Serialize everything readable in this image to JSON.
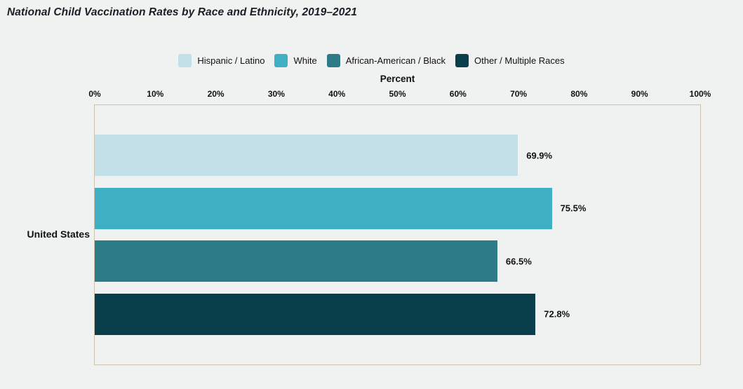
{
  "page": {
    "title": "National Child Vaccination Rates by Race and Ethnicity, 2019–2021",
    "background_color": "#f0f2f1",
    "plot_border_color": "#ccc2b0"
  },
  "chart": {
    "x_axis_title": "Percent",
    "category_label": "United States",
    "tick_labels": [
      "0%",
      "10%",
      "20%",
      "30%",
      "40%",
      "50%",
      "60%",
      "70%",
      "80%",
      "90%",
      "100%"
    ]
  },
  "chart_data": {
    "type": "bar",
    "orientation": "horizontal",
    "title": "National Child Vaccination Rates by Race and Ethnicity, 2019–2021",
    "categories": [
      "United States"
    ],
    "series": [
      {
        "name": "Hispanic / Latino",
        "values": [
          69.9
        ],
        "value_label": "69.9%",
        "color": "#c3e0e8"
      },
      {
        "name": "White",
        "values": [
          75.5
        ],
        "value_label": "75.5%",
        "color": "#3fb0c4"
      },
      {
        "name": "African-American / Black",
        "values": [
          66.5
        ],
        "value_label": "66.5%",
        "color": "#2e7b88"
      },
      {
        "name": "Other / Multiple Races",
        "values": [
          72.8
        ],
        "value_label": "72.8%",
        "color": "#093e4b"
      }
    ],
    "xlabel": "Percent",
    "ylabel": "",
    "xlim": [
      0,
      100
    ],
    "x_ticks": [
      0,
      10,
      20,
      30,
      40,
      50,
      60,
      70,
      80,
      90,
      100
    ],
    "legend_position": "top",
    "grid": false
  }
}
